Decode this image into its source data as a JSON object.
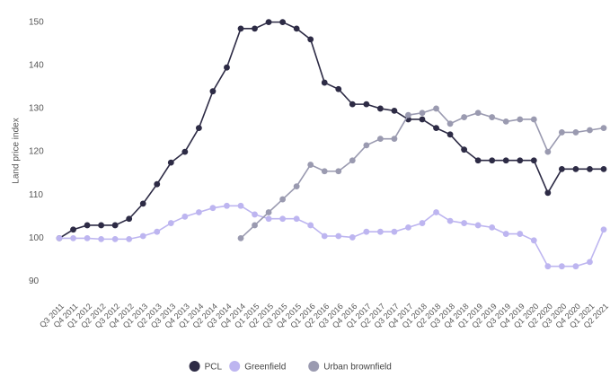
{
  "chart_data": {
    "type": "line",
    "y_label": "Land price index",
    "categories": [
      "Q3 2011",
      "Q4 2011",
      "Q1 2012",
      "Q2 2012",
      "Q3 2012",
      "Q4 2012",
      "Q1 2013",
      "Q2 2013",
      "Q3 2013",
      "Q4 2013",
      "Q1 2014",
      "Q2 2014",
      "Q3 2014",
      "Q4 2014",
      "Q1 2015",
      "Q2 2015",
      "Q3 2015",
      "Q4 2015",
      "Q1 2016",
      "Q2 2016",
      "Q3 2016",
      "Q4 2016",
      "Q1 2017",
      "Q2 2017",
      "Q3 2017",
      "Q4 2017",
      "Q1 2018",
      "Q2 2018",
      "Q3 2018",
      "Q4 2018",
      "Q1 2019",
      "Q2 2019",
      "Q3 2019",
      "Q4 2019",
      "Q1 2020",
      "Q2 2020",
      "Q3 2020",
      "Q4 2020",
      "Q1 2021",
      "Q2 2021"
    ],
    "series": [
      {
        "name": "PCL",
        "color": "#2d2b45",
        "values": [
          100,
          102,
          103,
          103,
          103,
          104.5,
          108,
          112.5,
          117.5,
          120,
          125.5,
          134,
          139.5,
          148.5,
          148.5,
          150,
          150,
          148.5,
          146,
          136,
          134.5,
          131,
          131,
          130,
          129.5,
          127.5,
          127.5,
          125.5,
          124,
          120.5,
          118,
          118,
          118,
          118,
          118,
          110.5,
          116,
          116,
          116,
          116
        ]
      },
      {
        "name": "Greenfield",
        "color": "#bdb5f0",
        "values": [
          100,
          100,
          100,
          99.8,
          99.8,
          99.8,
          100.5,
          101.5,
          103.5,
          105,
          106,
          107,
          107.5,
          107.5,
          105.5,
          104.5,
          104.5,
          104.5,
          103,
          100.5,
          100.5,
          100.2,
          101.5,
          101.5,
          101.5,
          102.5,
          103.5,
          106,
          104,
          103.5,
          103,
          102.5,
          101,
          101,
          99.5,
          93.5,
          93.5,
          93.5,
          94.5,
          102
        ]
      },
      {
        "name": "Urban brownfield",
        "color": "#9a9ab0",
        "values": [
          null,
          null,
          null,
          null,
          null,
          null,
          null,
          null,
          null,
          null,
          null,
          null,
          null,
          100,
          103,
          106,
          109,
          112,
          117,
          115.5,
          115.5,
          118,
          121.5,
          123,
          123,
          128.5,
          129,
          130,
          126.5,
          128,
          129,
          128,
          127,
          127.5,
          127.5,
          120,
          124.5,
          124.5,
          125,
          125.5
        ]
      }
    ],
    "ylim": [
      87,
      152
    ],
    "yticks": [
      90,
      100,
      110,
      120,
      130,
      140,
      150
    ],
    "grid": false,
    "legend": "bottom"
  }
}
